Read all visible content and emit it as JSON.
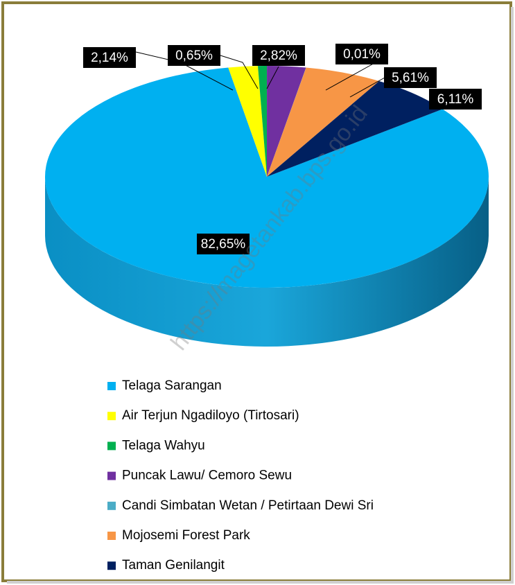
{
  "chart_data": {
    "type": "pie",
    "categories": [
      "Telaga Sarangan",
      "Air Terjun Ngadiloyo (Tirtosari)",
      "Telaga Wahyu",
      "Puncak Lawu/ Cemoro Sewu",
      "Candi Simbatan Wetan / Petirtaan Dewi Sri",
      "Mojosemi Forest Park",
      "Taman Genilangit"
    ],
    "values": [
      82.65,
      2.14,
      0.65,
      2.82,
      0.01,
      5.61,
      6.11
    ],
    "value_labels": [
      "82,65%",
      "2,14%",
      "0,65%",
      "2,82%",
      "0,01%",
      "5,61%",
      "6,11%"
    ],
    "colors": [
      "#00b0f0",
      "#ffff00",
      "#00b050",
      "#7030a0",
      "#4bacc6",
      "#f79646",
      "#002060"
    ],
    "legend": "bottom",
    "watermark": "https://magetankab.bps.go.id"
  }
}
